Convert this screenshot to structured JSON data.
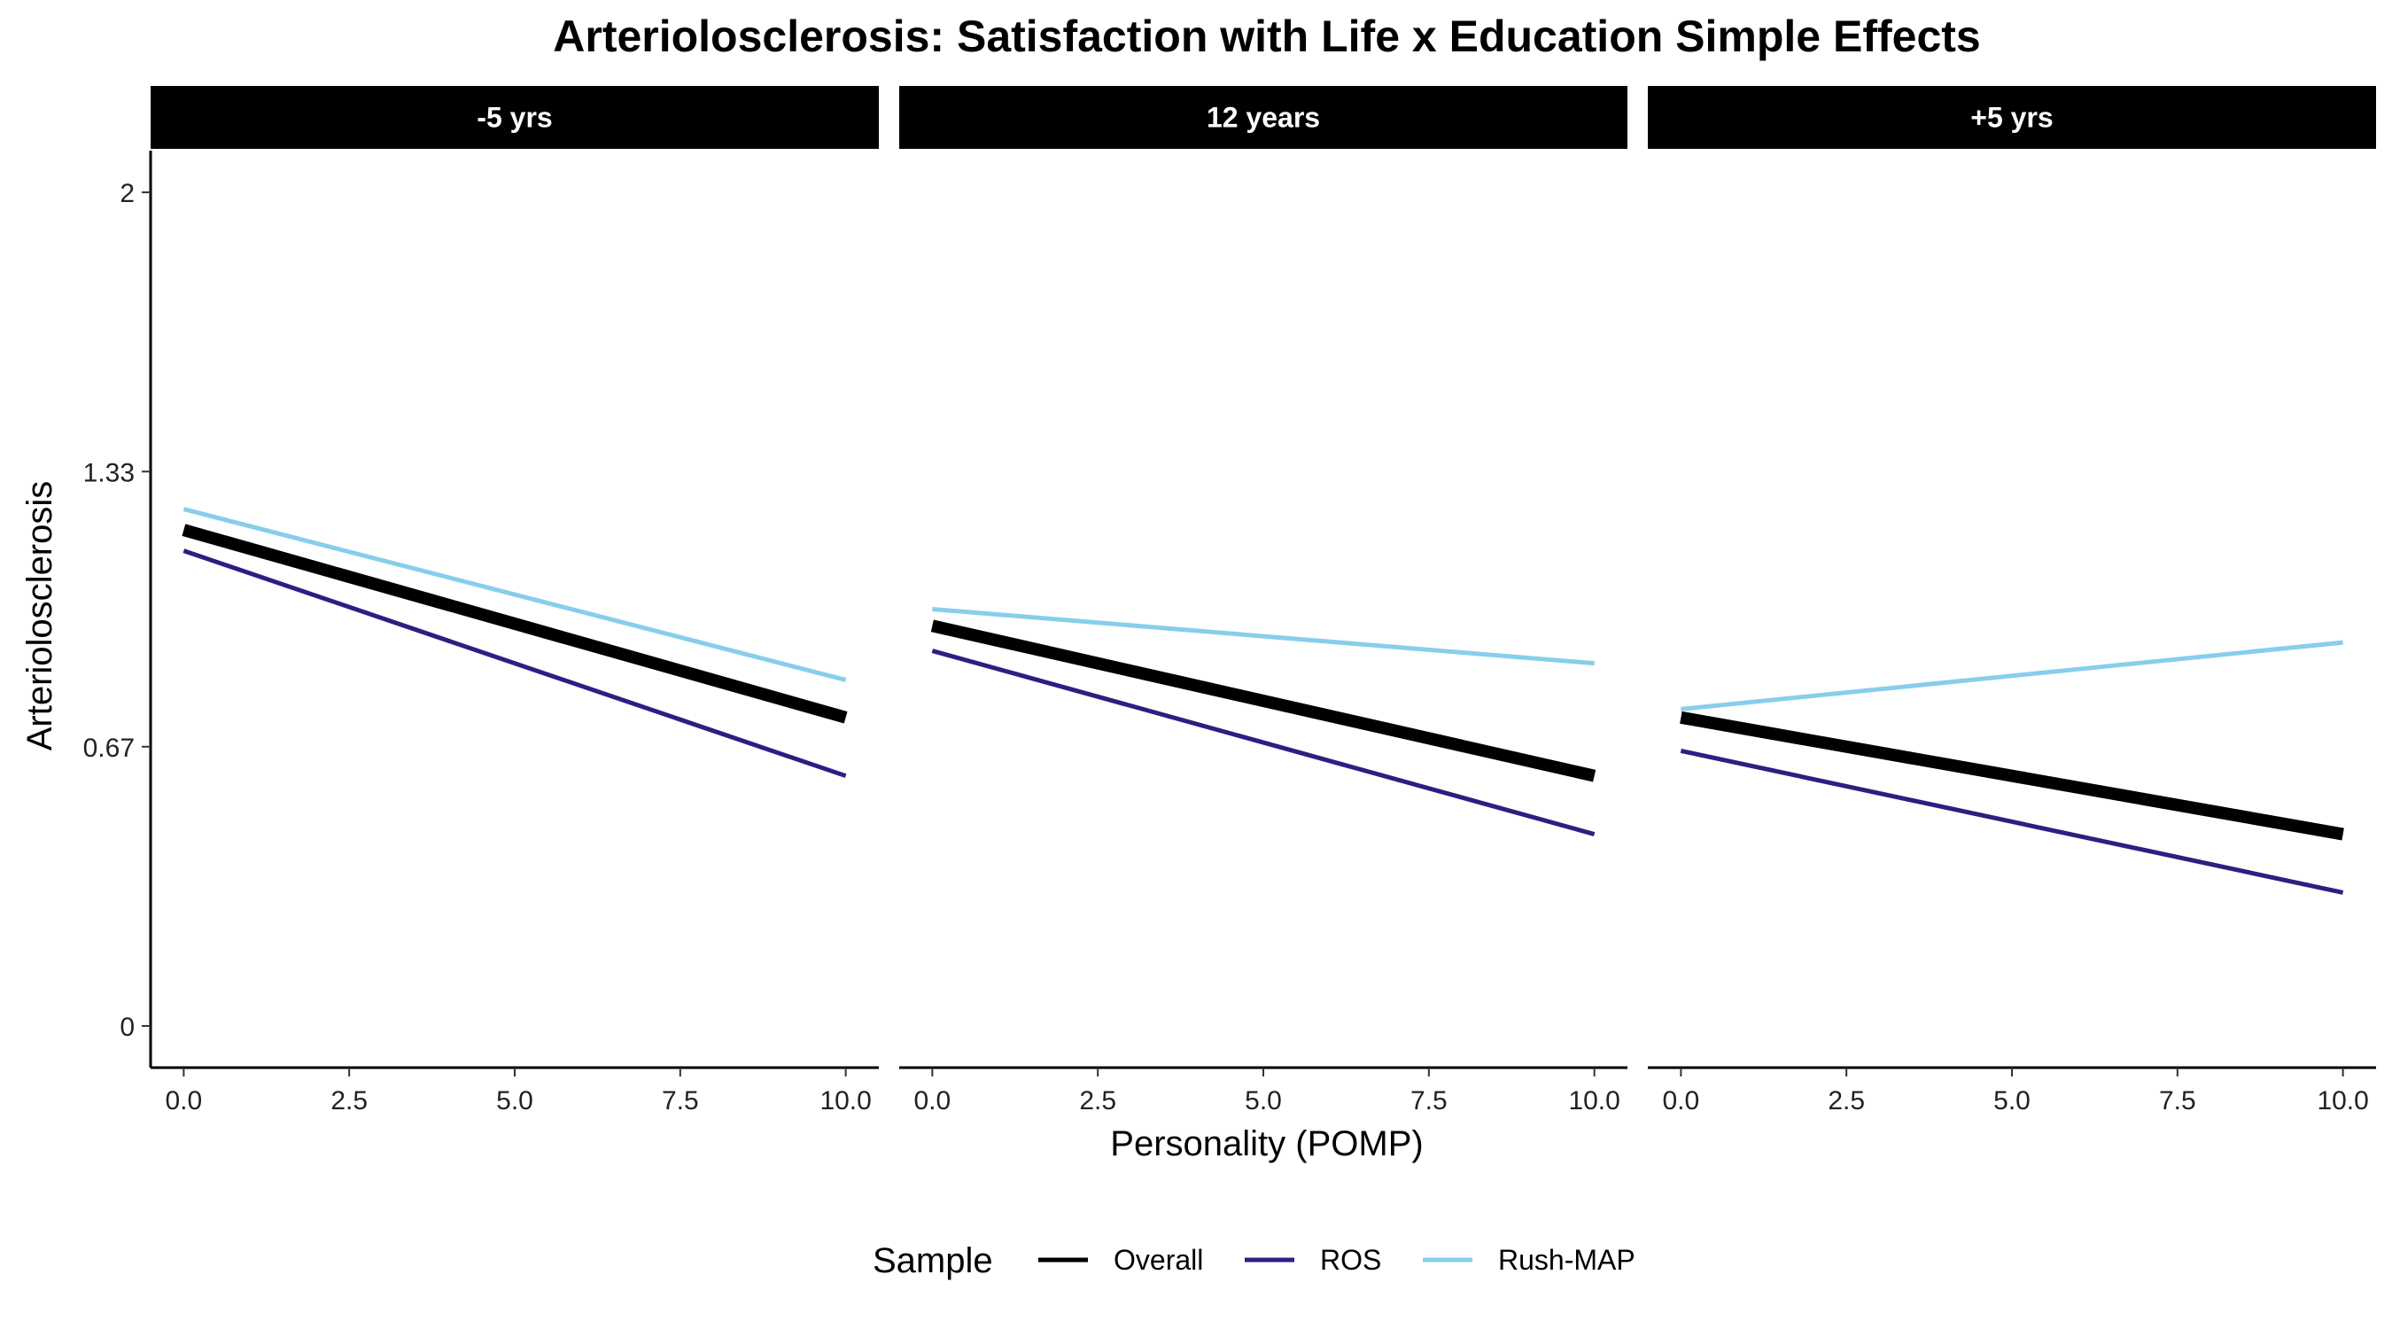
{
  "chart_data": {
    "type": "line",
    "title": "Arteriolosclerosis: Satisfaction with Life x Education Simple Effects",
    "xlabel": "Personality (POMP)",
    "ylabel": "Arteriolosclerosis",
    "xlim": [
      -0.5,
      10.5
    ],
    "ylim": [
      -0.1,
      2.1
    ],
    "x_ticks": [
      0,
      2.5,
      5,
      7.5,
      10
    ],
    "x_tick_labels": [
      "0.0",
      "2.5",
      "5.0",
      "7.5",
      "10.0"
    ],
    "y_ticks": [
      0,
      0.67,
      1.33,
      2
    ],
    "y_tick_labels": [
      "0",
      "0.67",
      "1.33",
      "2"
    ],
    "grid": false,
    "legend": {
      "title": "Sample",
      "position": "bottom",
      "entries": [
        "Overall",
        "ROS",
        "Rush-MAP"
      ]
    },
    "panels": [
      {
        "label": "-5 yrs",
        "series": [
          {
            "name": "Overall",
            "color": "#000000",
            "x": [
              0,
              10
            ],
            "y": [
              1.19,
              0.74
            ]
          },
          {
            "name": "ROS",
            "color": "#2d1e82",
            "x": [
              0,
              10
            ],
            "y": [
              1.14,
              0.6
            ]
          },
          {
            "name": "Rush-MAP",
            "color": "#87ceeb",
            "x": [
              0,
              10
            ],
            "y": [
              1.24,
              0.83
            ]
          }
        ]
      },
      {
        "label": "12 years",
        "series": [
          {
            "name": "Overall",
            "color": "#000000",
            "x": [
              0,
              10
            ],
            "y": [
              0.96,
              0.6
            ]
          },
          {
            "name": "ROS",
            "color": "#2d1e82",
            "x": [
              0,
              10
            ],
            "y": [
              0.9,
              0.46
            ]
          },
          {
            "name": "Rush-MAP",
            "color": "#87ceeb",
            "x": [
              0,
              10
            ],
            "y": [
              1.0,
              0.87
            ]
          }
        ]
      },
      {
        "label": "+5 yrs",
        "series": [
          {
            "name": "Overall",
            "color": "#000000",
            "x": [
              0,
              10
            ],
            "y": [
              0.74,
              0.46
            ]
          },
          {
            "name": "ROS",
            "color": "#2d1e82",
            "x": [
              0,
              10
            ],
            "y": [
              0.66,
              0.32
            ]
          },
          {
            "name": "Rush-MAP",
            "color": "#87ceeb",
            "x": [
              0,
              10
            ],
            "y": [
              0.76,
              0.92
            ]
          }
        ]
      }
    ]
  }
}
